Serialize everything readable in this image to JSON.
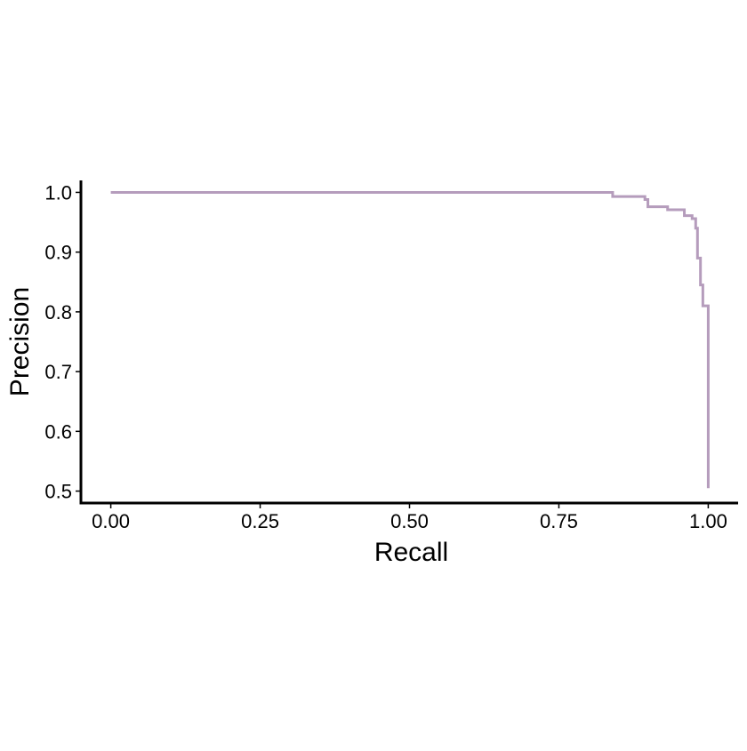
{
  "chart_data": {
    "type": "line",
    "title": "",
    "xlabel": "Recall",
    "ylabel": "Precision",
    "xlim": [
      -0.05,
      1.05
    ],
    "ylim": [
      0.48,
      1.02
    ],
    "xticks": [
      "0.00",
      "0.25",
      "0.50",
      "0.75",
      "1.00"
    ],
    "yticks": [
      "0.5",
      "0.6",
      "0.7",
      "0.8",
      "0.9",
      "1.0"
    ],
    "grid": false,
    "legend": "none",
    "series": [
      {
        "color": "#b59cbc",
        "step": true,
        "points": [
          [
            0.0,
            1.0
          ],
          [
            0.84,
            1.0
          ],
          [
            0.84,
            0.993
          ],
          [
            0.894,
            0.993
          ],
          [
            0.894,
            0.988
          ],
          [
            0.899,
            0.988
          ],
          [
            0.899,
            0.976
          ],
          [
            0.932,
            0.976
          ],
          [
            0.932,
            0.971
          ],
          [
            0.96,
            0.971
          ],
          [
            0.96,
            0.961
          ],
          [
            0.973,
            0.961
          ],
          [
            0.973,
            0.956
          ],
          [
            0.979,
            0.956
          ],
          [
            0.979,
            0.94
          ],
          [
            0.982,
            0.94
          ],
          [
            0.982,
            0.89
          ],
          [
            0.987,
            0.89
          ],
          [
            0.987,
            0.845
          ],
          [
            0.991,
            0.845
          ],
          [
            0.991,
            0.81
          ],
          [
            1.0,
            0.81
          ],
          [
            1.0,
            0.505
          ]
        ]
      }
    ]
  }
}
